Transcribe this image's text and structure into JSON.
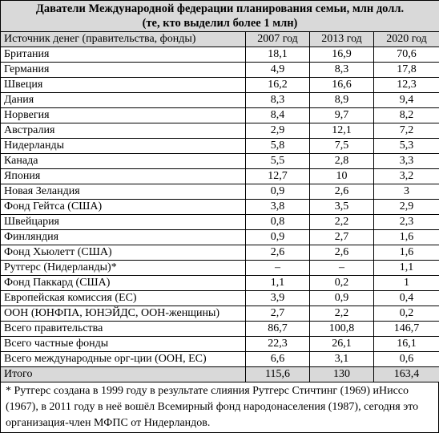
{
  "title_line1": "Даватели Международной федерации планирования семьи, млн долл.",
  "title_line2": "(те, кто выделил более 1 млн)",
  "headers": [
    "Источник денег (правительства, фонды)",
    "2007 год",
    "2013 год",
    "2020 год"
  ],
  "rows": [
    [
      "Британия",
      "18,1",
      "16,9",
      "70,6"
    ],
    [
      "Германия",
      "4,9",
      "8,3",
      "17,8"
    ],
    [
      "Швеция",
      "16,2",
      "16,6",
      "12,3"
    ],
    [
      "Дания",
      "8,3",
      "8,9",
      "9,4"
    ],
    [
      "Норвегия",
      "8,4",
      "9,7",
      "8,2"
    ],
    [
      "Австралия",
      "2,9",
      "12,1",
      "7,2"
    ],
    [
      "Нидерланды",
      "5,8",
      "7,5",
      "5,3"
    ],
    [
      "Канада",
      "5,5",
      "2,8",
      "3,3"
    ],
    [
      "Япония",
      "12,7",
      "10",
      "3,2"
    ],
    [
      "Новая Зеландия",
      "0,9",
      "2,6",
      "3"
    ],
    [
      "Фонд Гейтса (США)",
      "3,8",
      "3,5",
      "2,9"
    ],
    [
      "Швейцария",
      "0,8",
      "2,2",
      "2,3"
    ],
    [
      "Финляндия",
      "0,9",
      "2,7",
      "1,6"
    ],
    [
      "Фонд Хьюлетт (США)",
      "2,6",
      "2,6",
      "1,6"
    ],
    [
      "Рутгерс (Нидерланды)*",
      "–",
      "–",
      "1,1"
    ],
    [
      "Фонд Паккард (США)",
      "1,1",
      "0,2",
      "1"
    ],
    [
      "Европейская комиссия (ЕС)",
      "3,9",
      "0,9",
      "0,4"
    ],
    [
      "ООН (ЮНФПА, ЮНЭЙДС, ООН-женщины)",
      "2,7",
      "2,2",
      "0,2"
    ],
    [
      "Всего правительства",
      "86,7",
      "100,8",
      "146,7"
    ],
    [
      "Всего частные фонды",
      "22,3",
      "26,1",
      "16,1"
    ],
    [
      "Всего международные орг-ции (ООН, ЕС)",
      "6,6",
      "3,1",
      "0,6"
    ]
  ],
  "total": [
    "Итого",
    "115,6",
    "130",
    "163,4"
  ],
  "footnote": "* Рутгерс создана в 1999 году в результате слияния Рутгерс Стичтинг (1969) иНиссо (1967), в 2011 году в неё вошёл Всемирный фонд народонаселения (1987), сегодня это организация-член МФПС от Нидерландов."
}
